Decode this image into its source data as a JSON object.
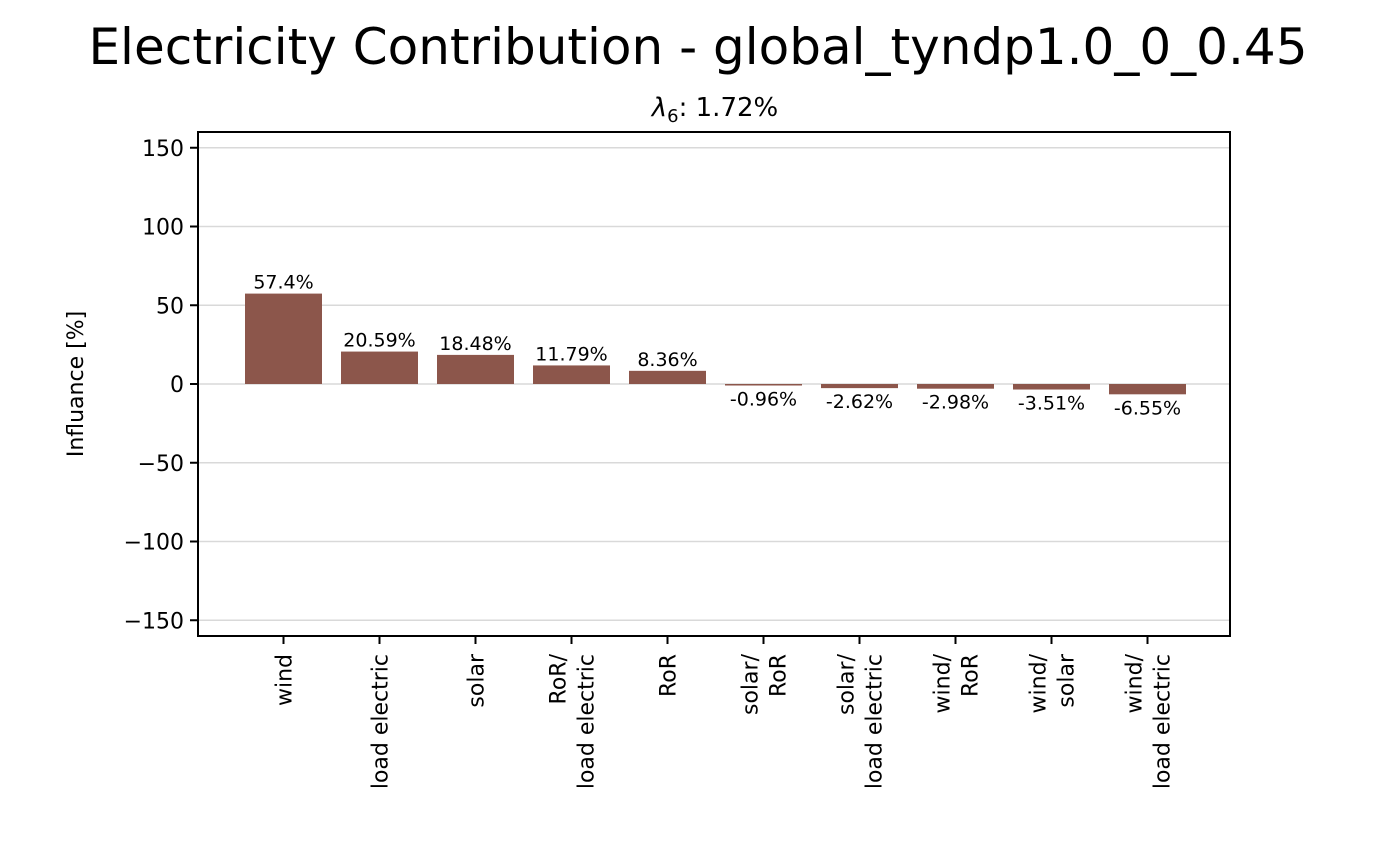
{
  "chart_data": {
    "type": "bar",
    "title": "Electricity Contribution - global_tyndp1.0_0_0.45",
    "subtitle": {
      "symbol": "λ",
      "subscript": "6",
      "value": ": 1.72%"
    },
    "xlabel": "",
    "ylabel": "Influance [%]",
    "ylim": [
      -160,
      160
    ],
    "yticks": [
      150,
      100,
      50,
      0,
      -50,
      -100,
      -150
    ],
    "ytick_labels": [
      "150",
      "100",
      "50",
      "0",
      "−50",
      "−100",
      "−150"
    ],
    "grid": "horizontal",
    "bar_color": "#8c564b",
    "categories": [
      [
        "wind"
      ],
      [
        "load electric"
      ],
      [
        "solar"
      ],
      [
        "RoR/",
        "load electric"
      ],
      [
        "RoR"
      ],
      [
        "solar/",
        "RoR"
      ],
      [
        "solar/",
        "load electric"
      ],
      [
        "wind/",
        "RoR"
      ],
      [
        "wind/",
        "solar"
      ],
      [
        "wind/",
        "load electric"
      ]
    ],
    "values": [
      57.4,
      20.59,
      18.48,
      11.79,
      8.36,
      -0.96,
      -2.62,
      -2.98,
      -3.51,
      -6.55
    ],
    "value_labels": [
      "57.4%",
      "20.59%",
      "18.48%",
      "11.79%",
      "8.36%",
      "-0.96%",
      "-2.62%",
      "-2.98%",
      "-3.51%",
      "-6.55%"
    ]
  }
}
